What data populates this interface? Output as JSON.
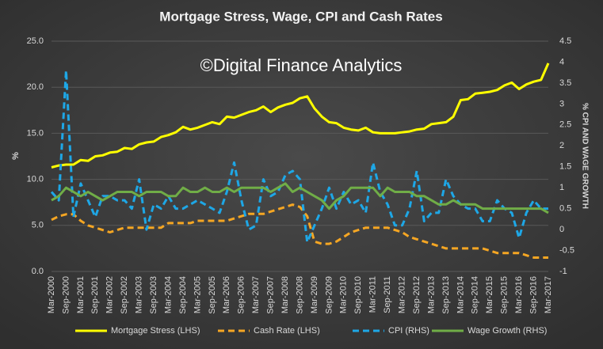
{
  "chart_data": {
    "type": "line",
    "title": "Mortgage Stress, Wage, CPI and Cash Rates",
    "annotation": "©Digital Finance Analytics",
    "y_label": "%",
    "y2_label": "% CPI AND WAGE GROWTH",
    "categories": [
      "Mar-2000",
      null,
      "Sep-2000",
      null,
      "Mar-2001",
      null,
      "Sep-2001",
      null,
      "Mar-2002",
      null,
      "Sep-2002",
      null,
      "Mar-2003",
      null,
      "Sep-2003",
      null,
      "Mar-2004",
      null,
      "Sep-2004",
      null,
      "Mar-2005",
      null,
      "Sep-2005",
      null,
      "Mar-2006",
      null,
      "Sep-2006",
      null,
      "Mar-2007",
      null,
      "Sep-2007",
      null,
      "Mar-2008",
      null,
      "Sep-2008",
      null,
      "Mar-2009",
      null,
      "Sep-2009",
      null,
      "Mar-2010",
      null,
      "Sep-2010",
      null,
      "Mar-2011",
      null,
      "Sep-2011",
      null,
      "Mar-2012",
      null,
      "Sep-2012",
      null,
      "Mar-2013",
      null,
      "Sep-2013",
      null,
      "Mar-2014",
      null,
      "Sep-2014",
      null,
      "Mar-2015",
      null,
      "Sep-2015",
      null,
      "Mar-2016",
      null,
      "Sep-2016",
      null,
      "Mar-2017"
    ],
    "series": [
      {
        "name": "Mortgage Stress (LHS)",
        "color": "#ffff00",
        "dashed": false,
        "axis": "y",
        "values": [
          11.3,
          11.5,
          11.6,
          11.6,
          12.1,
          12.0,
          12.5,
          12.6,
          12.9,
          13.0,
          13.4,
          13.3,
          13.8,
          14.0,
          14.1,
          14.6,
          14.8,
          15.1,
          15.7,
          15.4,
          15.6,
          15.9,
          16.2,
          16.0,
          16.8,
          16.7,
          17.0,
          17.3,
          17.5,
          17.9,
          17.3,
          17.8,
          18.1,
          18.3,
          18.8,
          19.0,
          17.7,
          16.8,
          16.2,
          16.1,
          15.6,
          15.4,
          15.3,
          15.6,
          15.1,
          15.0,
          15.0,
          15.0,
          15.1,
          15.2,
          15.4,
          15.5,
          16.0,
          16.1,
          16.2,
          16.8,
          18.6,
          18.7,
          19.3,
          19.4,
          19.5,
          19.7,
          20.2,
          20.5,
          19.8,
          20.3,
          20.6,
          20.8,
          22.6
        ]
      },
      {
        "name": "Cash Rate (LHS)",
        "color": "#f5a623",
        "dashed": true,
        "axis": "y",
        "values": [
          5.6,
          6.0,
          6.2,
          6.2,
          5.5,
          5.0,
          4.75,
          4.5,
          4.25,
          4.5,
          4.75,
          4.75,
          4.75,
          4.75,
          4.75,
          4.75,
          5.25,
          5.25,
          5.25,
          5.25,
          5.5,
          5.5,
          5.5,
          5.5,
          5.5,
          5.75,
          6.0,
          6.25,
          6.25,
          6.25,
          6.5,
          6.75,
          7.0,
          7.25,
          7.0,
          6.0,
          3.25,
          3.0,
          3.0,
          3.25,
          3.75,
          4.25,
          4.5,
          4.75,
          4.75,
          4.75,
          4.75,
          4.5,
          4.25,
          3.75,
          3.5,
          3.25,
          3.0,
          2.75,
          2.5,
          2.5,
          2.5,
          2.5,
          2.5,
          2.5,
          2.25,
          2.0,
          2.0,
          2.0,
          2.0,
          1.75,
          1.5,
          1.5,
          1.5
        ]
      },
      {
        "name": "CPI (RHS)",
        "color": "#1ea7e6",
        "dashed": true,
        "axis": "y2",
        "values": [
          0.9,
          0.7,
          3.8,
          0.3,
          1.1,
          0.7,
          0.3,
          0.8,
          0.8,
          0.7,
          0.7,
          0.5,
          1.2,
          0.0,
          0.6,
          0.5,
          0.8,
          0.5,
          0.5,
          0.6,
          0.7,
          0.6,
          0.5,
          0.4,
          0.9,
          1.6,
          0.7,
          0.0,
          0.1,
          1.2,
          0.8,
          0.9,
          1.3,
          1.4,
          1.2,
          -0.3,
          0.1,
          0.5,
          1.0,
          0.5,
          0.9,
          0.6,
          0.7,
          0.4,
          1.6,
          0.9,
          0.6,
          0.1,
          0.1,
          0.5,
          1.4,
          0.2,
          0.4,
          0.4,
          1.2,
          0.8,
          0.6,
          0.5,
          0.5,
          0.2,
          0.2,
          0.7,
          0.5,
          0.4,
          -0.2,
          0.4,
          0.7,
          0.5,
          0.5
        ]
      },
      {
        "name": "Wage Growth (RHS)",
        "color": "#70ad47",
        "dashed": false,
        "axis": "y2",
        "values": [
          0.7,
          0.8,
          1.0,
          0.9,
          0.8,
          0.9,
          0.8,
          0.7,
          0.8,
          0.9,
          0.9,
          0.9,
          0.8,
          0.9,
          0.9,
          0.9,
          0.8,
          0.8,
          1.0,
          0.9,
          0.9,
          1.0,
          0.9,
          0.9,
          1.0,
          0.9,
          1.0,
          1.0,
          1.0,
          1.0,
          0.9,
          1.0,
          1.1,
          0.9,
          1.0,
          0.9,
          0.8,
          0.7,
          0.5,
          0.7,
          0.8,
          1.0,
          1.0,
          1.0,
          1.0,
          0.8,
          1.0,
          0.9,
          0.9,
          0.9,
          0.8,
          0.8,
          0.7,
          0.6,
          0.6,
          0.7,
          0.6,
          0.6,
          0.6,
          0.5,
          0.5,
          0.5,
          0.5,
          0.5,
          0.5,
          0.5,
          0.5,
          0.5,
          0.4
        ]
      }
    ],
    "ylim": [
      0,
      25
    ],
    "yticks": [
      {
        "value": 0,
        "label": "0.0"
      },
      {
        "value": 5,
        "label": "5.0"
      },
      {
        "value": 10,
        "label": "10.0"
      },
      {
        "value": 15,
        "label": "15.0"
      },
      {
        "value": 20,
        "label": "20.0"
      },
      {
        "value": 25,
        "label": "25.0"
      }
    ],
    "y2lim": [
      -1,
      4.5
    ],
    "y2ticks": [
      -1,
      -0.5,
      0,
      0.5,
      1,
      1.5,
      2,
      2.5,
      3,
      3.5,
      4,
      4.5
    ],
    "grid": true,
    "legend": "bottom"
  }
}
